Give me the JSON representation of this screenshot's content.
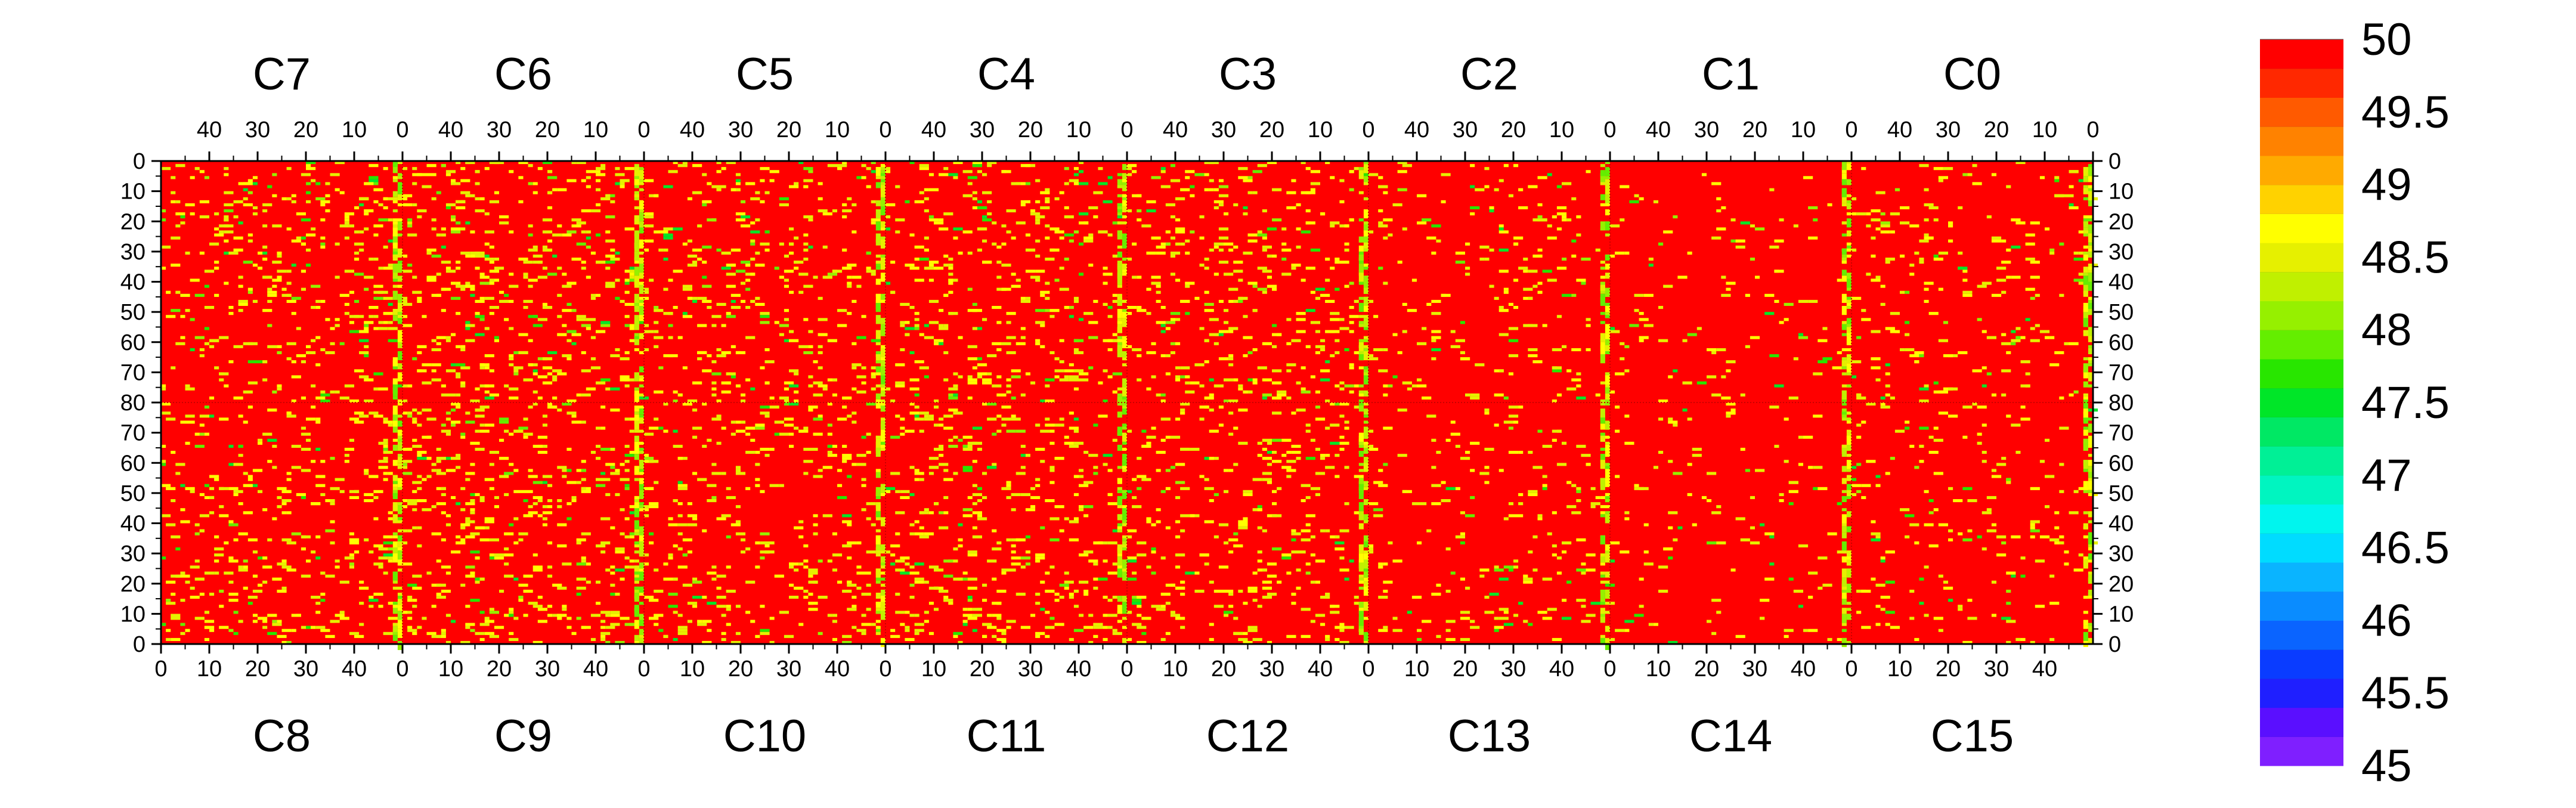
{
  "chart_data": {
    "type": "heatmap",
    "top_panels": [
      "C7",
      "C6",
      "C5",
      "C4",
      "C3",
      "C2",
      "C1",
      "C0"
    ],
    "bottom_panels": [
      "C8",
      "C9",
      "C10",
      "C11",
      "C12",
      "C13",
      "C14",
      "C15"
    ],
    "top_x_ticks": [
      "40",
      "30",
      "20",
      "10",
      "0"
    ],
    "bottom_x_ticks": [
      "0",
      "10",
      "20",
      "30",
      "40"
    ],
    "top_x_range": [
      50,
      0
    ],
    "bottom_x_range": [
      0,
      50
    ],
    "y_ticks_top_half": [
      "0",
      "10",
      "20",
      "30",
      "40",
      "50",
      "60",
      "70",
      "80"
    ],
    "y_ticks_bottom_half": [
      "70",
      "60",
      "50",
      "40",
      "30",
      "20",
      "10",
      "0"
    ],
    "y_range_top_half": [
      0,
      80
    ],
    "y_range_bottom_half": [
      80,
      0
    ],
    "colorbar": {
      "min": 45,
      "max": 50,
      "step": 0.25,
      "labels": [
        "50",
        "49.5",
        "49",
        "48.5",
        "48",
        "47.5",
        "47",
        "46.5",
        "46",
        "45.5",
        "45"
      ],
      "colors": [
        "#7f1fff",
        "#5a0fff",
        "#1f1fff",
        "#0a3cff",
        "#0a64ff",
        "#0a8cff",
        "#0ab4ff",
        "#00dcff",
        "#00f5ee",
        "#00f5c0",
        "#00f096",
        "#00e864",
        "#00e628",
        "#28e600",
        "#64ee00",
        "#96f000",
        "#c0f000",
        "#e6f000",
        "#ffff00",
        "#ffd200",
        "#ffaa00",
        "#ff8200",
        "#ff5a00",
        "#ff2800",
        "#ff0000"
      ]
    },
    "dominant_value": 50,
    "sparse_value_range": [
      48,
      49.75
    ],
    "title": "",
    "xlabel": "",
    "ylabel": ""
  }
}
